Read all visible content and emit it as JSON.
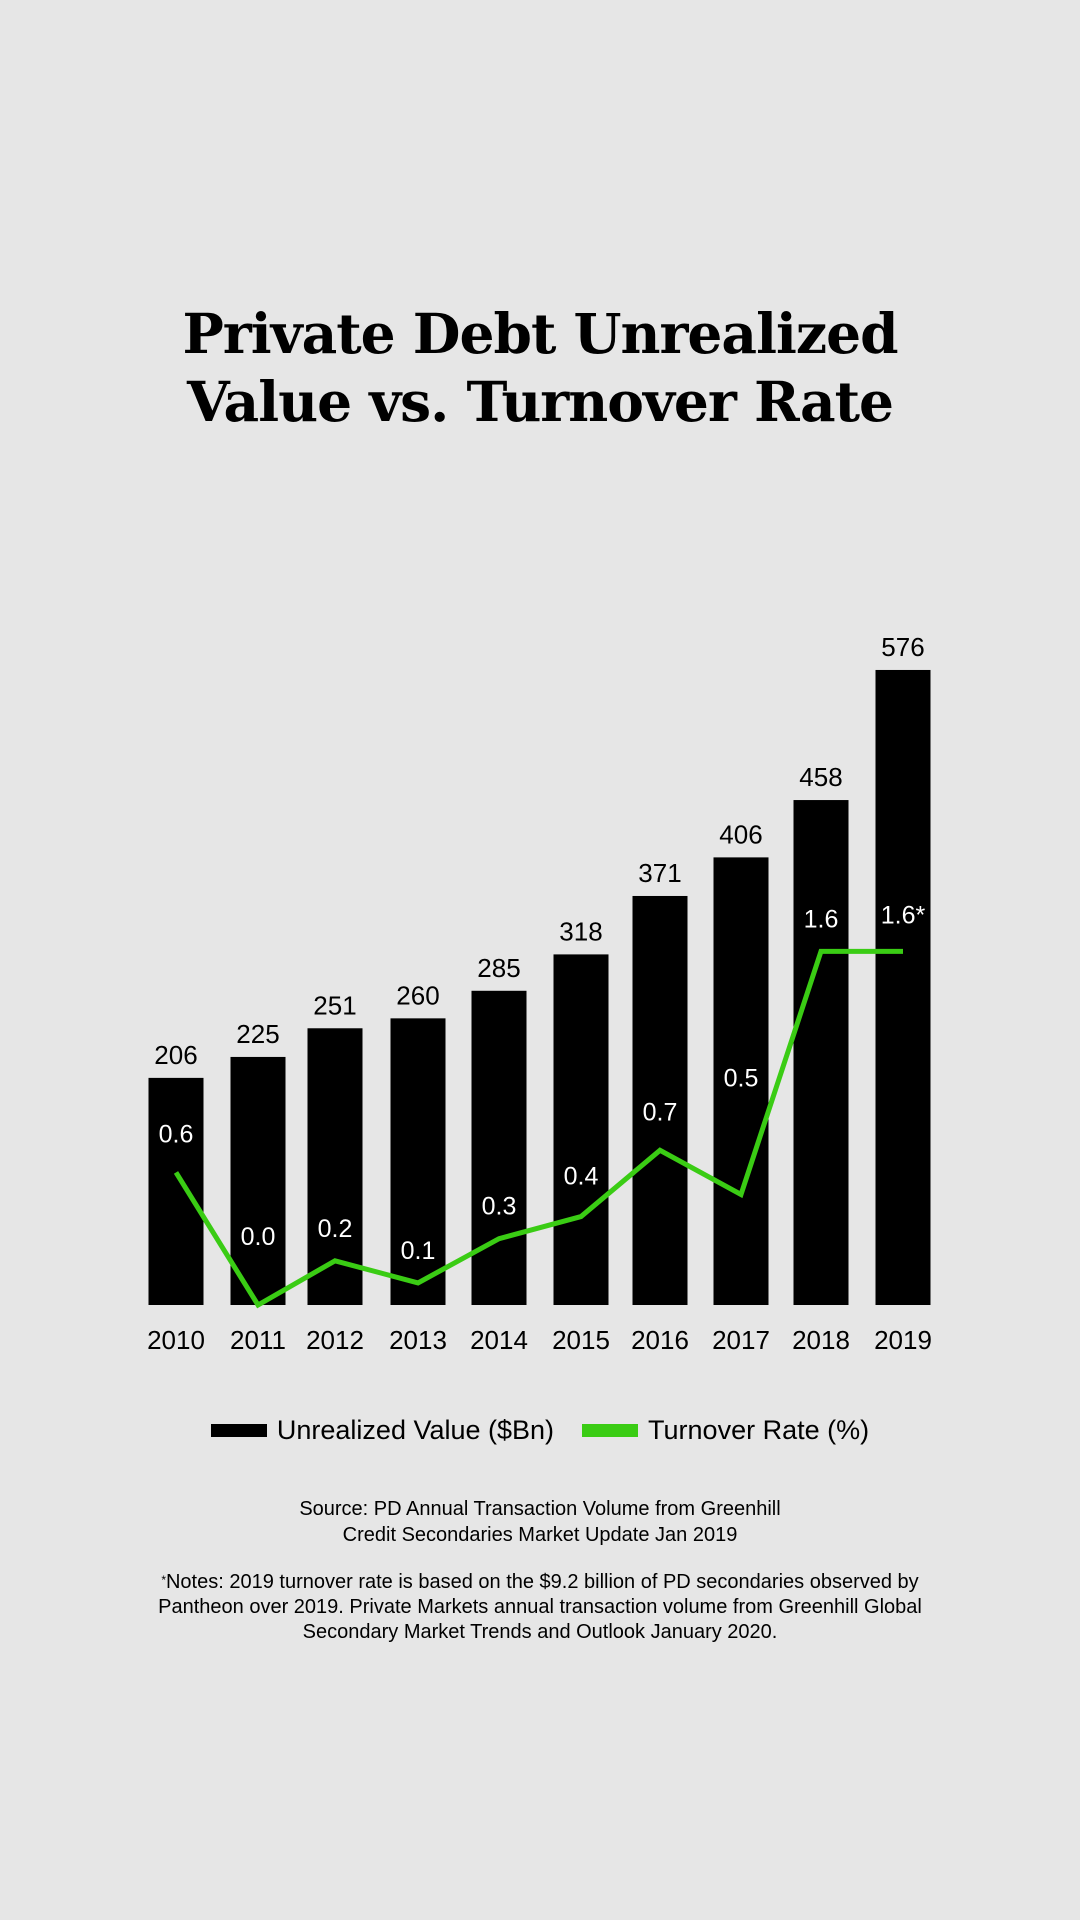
{
  "title": {
    "line1": "Private Debt Unrealized",
    "line2": "Value vs. Turnover Rate"
  },
  "colors": {
    "background": "#e6e6e6",
    "bar": "#000000",
    "line": "#3acc14",
    "bar_label": "#000000",
    "line_label": "#ffffff"
  },
  "chart_data": {
    "type": "bar",
    "title": "Private Debt Unrealized Value vs. Turnover Rate",
    "categories": [
      "2010",
      "2011",
      "2012",
      "2013",
      "2014",
      "2015",
      "2016",
      "2017",
      "2018",
      "2019"
    ],
    "series": [
      {
        "name": "Unrealized Value ($Bn)",
        "type": "bar",
        "values": [
          206,
          225,
          251,
          260,
          285,
          318,
          371,
          406,
          458,
          576
        ],
        "labels": [
          "206",
          "225",
          "251",
          "260",
          "285",
          "318",
          "371",
          "406",
          "458",
          "576"
        ]
      },
      {
        "name": "Turnover Rate (%)",
        "type": "line",
        "values": [
          0.6,
          0.0,
          0.2,
          0.1,
          0.3,
          0.4,
          0.7,
          0.5,
          1.6,
          1.6
        ],
        "labels": [
          "0.6",
          "0.0",
          "0.2",
          "0.1",
          "0.3",
          "0.4",
          "0.7",
          "0.5",
          "1.6",
          "1.6*"
        ]
      }
    ],
    "grid": false,
    "legend_position": "bottom-center"
  },
  "legend": {
    "items": [
      {
        "label": "Unrealized Value ($Bn)",
        "color": "#000000"
      },
      {
        "label": "Turnover Rate (%)",
        "color": "#3acc14"
      }
    ]
  },
  "source": {
    "line1": "Source: PD Annual Transaction Volume from Greenhill",
    "line2": "Credit Secondaries Market Update Jan 2019"
  },
  "notes": {
    "marker": "*",
    "line1": "Notes: 2019 turnover rate is based on the $9.2 billion of PD secondaries observed by",
    "line2": "Pantheon over 2019. Private Markets annual transaction volume from Greenhill Global",
    "line3": "Secondary Market Trends and Outlook January 2020."
  }
}
